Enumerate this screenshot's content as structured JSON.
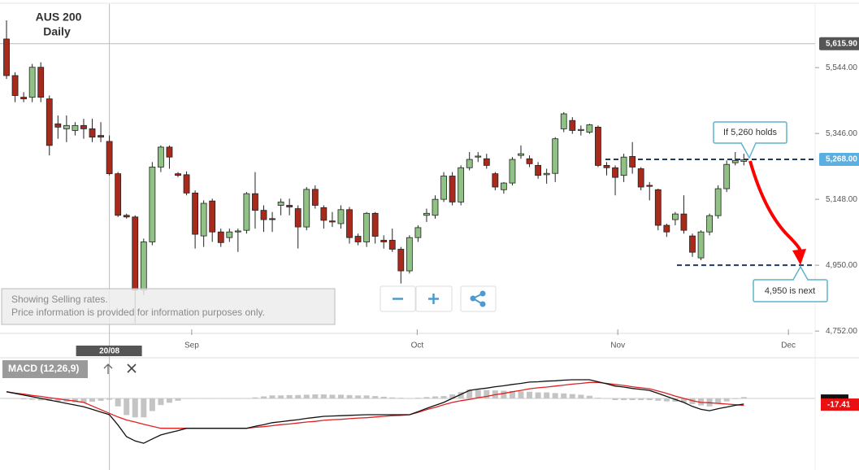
{
  "chart_data": [
    {
      "type": "candlestick",
      "title": "AUS 200",
      "subtitle": "Daily",
      "open": [
        5630,
        5520,
        5455,
        5455,
        5545,
        5450,
        5375,
        5360,
        5355,
        5370,
        5360,
        5340,
        5322,
        5225,
        5100,
        5095,
        4875,
        5020,
        5245,
        5305,
        5225,
        5222,
        5167,
        5038,
        5143,
        5050,
        5033,
        5050,
        5055,
        5165,
        5115,
        5090,
        5130,
        5130,
        5120,
        5065,
        5178,
        5123,
        5083,
        5075,
        5117,
        5037,
        5020,
        5106,
        5025,
        5025,
        4998,
        4933,
        5033,
        5100,
        5100,
        5148,
        5218,
        5140,
        5243,
        5275,
        5270,
        5225,
        5177,
        5197,
        5280,
        5270,
        5250,
        5222,
        5226,
        5360,
        5385,
        5355,
        5350,
        5365,
        5250,
        5243,
        5220,
        5277,
        5240,
        5190,
        5177,
        5070,
        5087,
        5104,
        5038,
        4972,
        5050,
        5099,
        5180,
        5258,
        5262
      ],
      "high": [
        5686,
        5530,
        5470,
        5555,
        5560,
        5460,
        5400,
        5400,
        5380,
        5390,
        5390,
        5380,
        5340,
        5230,
        5105,
        5100,
        5030,
        5260,
        5310,
        5310,
        5230,
        5232,
        5175,
        5145,
        5150,
        5060,
        5060,
        5060,
        5170,
        5230,
        5130,
        5110,
        5150,
        5150,
        5130,
        5185,
        5190,
        5130,
        5110,
        5130,
        5125,
        5045,
        5110,
        5110,
        5040,
        5060,
        5005,
        5040,
        5070,
        5120,
        5160,
        5230,
        5230,
        5250,
        5290,
        5290,
        5285,
        5230,
        5200,
        5275,
        5310,
        5280,
        5260,
        5240,
        5335,
        5410,
        5395,
        5370,
        5375,
        5370,
        5260,
        5250,
        5285,
        5320,
        5245,
        5200,
        5180,
        5075,
        5110,
        5160,
        5045,
        5055,
        5105,
        5190,
        5265,
        5290,
        5285
      ],
      "low": [
        5510,
        5440,
        5440,
        5440,
        5440,
        5280,
        5330,
        5320,
        5340,
        5330,
        5320,
        5320,
        5220,
        5095,
        5090,
        4776,
        4860,
        5010,
        5230,
        5240,
        5215,
        5160,
        5000,
        5005,
        5020,
        5005,
        5020,
        4990,
        5045,
        5060,
        5050,
        5050,
        5100,
        5100,
        5000,
        5055,
        5120,
        5060,
        5065,
        5060,
        5015,
        5010,
        5005,
        5015,
        5000,
        4990,
        4895,
        4925,
        5020,
        5080,
        5090,
        5140,
        5130,
        5130,
        5235,
        5260,
        5240,
        5175,
        5165,
        5190,
        5270,
        5245,
        5210,
        5195,
        5200,
        5350,
        5345,
        5340,
        5345,
        5245,
        5220,
        5160,
        5200,
        5225,
        5175,
        5145,
        5055,
        5035,
        5070,
        5045,
        4975,
        4965,
        5040,
        5090,
        5170,
        5250,
        5250
      ],
      "close": [
        5520,
        5460,
        5450,
        5545,
        5455,
        5310,
        5365,
        5370,
        5370,
        5360,
        5335,
        5335,
        5225,
        5100,
        5095,
        4875,
        5020,
        5245,
        5305,
        5275,
        5220,
        5167,
        5043,
        5136,
        5050,
        5018,
        5050,
        5053,
        5165,
        5115,
        5087,
        5087,
        5140,
        5125,
        5065,
        5178,
        5130,
        5085,
        5080,
        5117,
        5033,
        5020,
        5106,
        5037,
        5020,
        4998,
        4933,
        5033,
        5063,
        5106,
        5148,
        5218,
        5140,
        5243,
        5268,
        5278,
        5250,
        5185,
        5197,
        5268,
        5285,
        5255,
        5220,
        5226,
        5330,
        5405,
        5355,
        5358,
        5372,
        5250,
        5243,
        5214,
        5275,
        5245,
        5185,
        5187,
        5070,
        5050,
        5104,
        5055,
        4989,
        5050,
        5099,
        5180,
        5253,
        5265,
        5267
      ],
      "up_color": "#8fc284",
      "down_color": "#a9291b",
      "xlim": [
        -0.76,
        94.03
      ],
      "ylim": [
        4745,
        5735
      ],
      "xticks": [
        {
          "value": 21.6,
          "label": "Sep"
        },
        {
          "value": 47.9,
          "label": "Oct"
        },
        {
          "value": 71.3,
          "label": "Nov"
        },
        {
          "value": 91.2,
          "label": "Dec"
        }
      ],
      "yticks": [
        {
          "value": 5544,
          "label": "5,544.00"
        },
        {
          "value": 5346,
          "label": "5,346.00"
        },
        {
          "value": 5148,
          "label": "5,148.00"
        },
        {
          "value": 4950,
          "label": "4,950.00"
        },
        {
          "value": 4752,
          "label": "4,752.00"
        }
      ],
      "crosshair": {
        "x": 12,
        "x_label": "20/08",
        "y": 5615.9,
        "y_label": "5,615.90"
      },
      "price_tag": {
        "value": 5268,
        "label": "5,268.00"
      },
      "levels": [
        5268,
        4950
      ],
      "annotations": [
        "If 5,260 holds",
        "4,950 is next"
      ]
    },
    {
      "type": "macd",
      "title": "MACD (12,26,9)",
      "macd": [
        20,
        15,
        10,
        5,
        0,
        -5,
        -10,
        -15,
        -20,
        -25,
        -33,
        -41,
        -49,
        -80,
        -115,
        -128,
        -135,
        -122,
        -110,
        -103,
        -97,
        -90,
        -90,
        -90,
        -90,
        -90,
        -90,
        -90,
        -90,
        -84,
        -79,
        -73,
        -70,
        -67,
        -64,
        -60,
        -57,
        -54,
        -53,
        -52,
        -51,
        -50,
        -49,
        -49,
        -49,
        -49,
        -49,
        -49,
        -40,
        -30,
        -21,
        -12,
        0,
        12,
        24,
        28,
        31,
        35,
        38,
        42,
        45,
        49,
        50,
        52,
        53,
        55,
        56,
        56,
        56,
        50,
        44,
        37,
        34,
        30,
        27,
        24,
        15,
        6,
        -3,
        -12,
        -24,
        -33,
        -37,
        -31,
        -26,
        -21,
        -17
      ],
      "signal": [
        20,
        16,
        13,
        9,
        6,
        2,
        -1,
        -5,
        -8,
        -12,
        -23,
        -34,
        -45,
        -56,
        -65,
        -71,
        -78,
        -84,
        -90,
        -90,
        -90,
        -90,
        -90,
        -90,
        -90,
        -90,
        -90,
        -90,
        -90,
        -87,
        -85,
        -82,
        -79,
        -77,
        -74,
        -71,
        -69,
        -66,
        -64,
        -63,
        -61,
        -59,
        -58,
        -56,
        -54,
        -52,
        -51,
        -49,
        -42,
        -34,
        -27,
        -19,
        -12,
        -7,
        -3,
        2,
        6,
        11,
        15,
        20,
        24,
        29,
        32,
        34,
        37,
        40,
        43,
        45,
        48,
        48,
        45,
        42,
        39,
        35,
        32,
        29,
        22,
        15,
        7,
        0,
        -7,
        -12,
        -13,
        -15,
        -17,
        -19,
        -21
      ],
      "histogram": [
        0,
        -1,
        -3,
        -4,
        -6,
        -7,
        -9,
        -10,
        -12,
        -13,
        -10,
        -7,
        -4,
        -24,
        -50,
        -57,
        -57,
        -38,
        -20,
        -13,
        -7,
        0,
        0,
        0,
        0,
        0,
        0,
        0,
        0,
        3,
        6,
        9,
        9,
        10,
        10,
        11,
        12,
        12,
        11,
        11,
        10,
        9,
        9,
        7,
        5,
        3,
        2,
        0,
        2,
        4,
        6,
        7,
        12,
        19,
        27,
        26,
        25,
        24,
        23,
        22,
        21,
        20,
        18,
        18,
        16,
        15,
        13,
        11,
        8,
        2,
        -1,
        -5,
        -5,
        -5,
        -5,
        -5,
        -7,
        -9,
        -10,
        -12,
        -17,
        -21,
        -24,
        -16,
        -9,
        -2,
        4
      ],
      "macd_color": "#111111",
      "signal_color": "#e02020",
      "histogram_color": "#c4c4c4",
      "ylim": [
        -208,
        61
      ],
      "last_value": -17.41
    }
  ],
  "notice": [
    "Showing Selling rates.",
    "Price information is provided for information purposes only."
  ]
}
